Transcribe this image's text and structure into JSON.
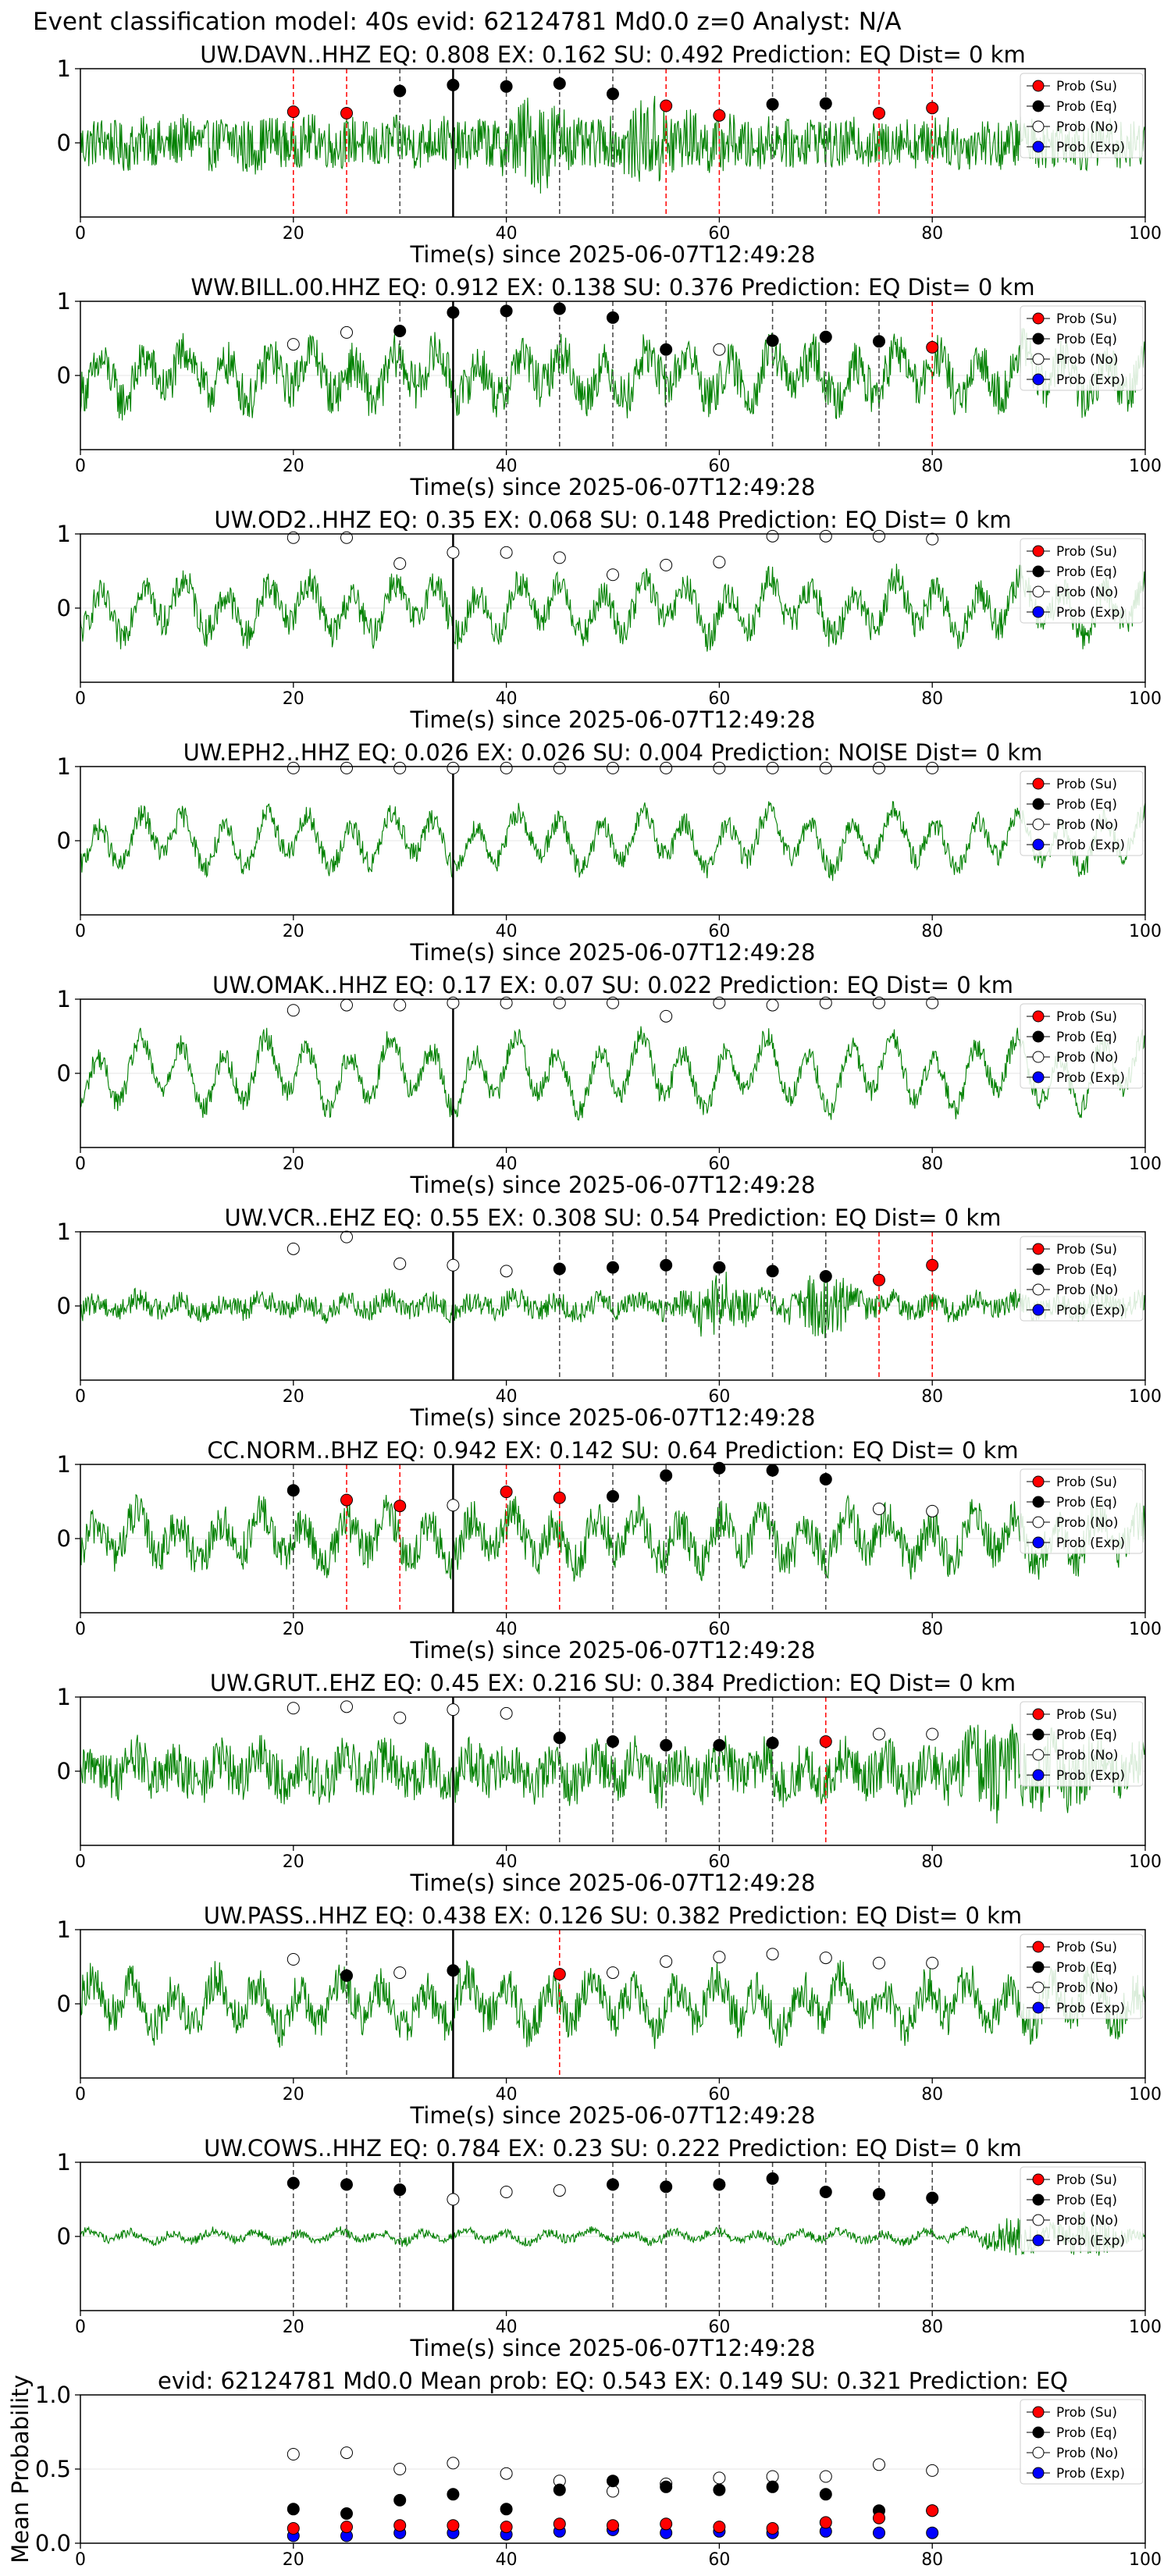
{
  "figure": {
    "suptitle": "Event classification model: 40s evid: 62124781 Md0.0 z=0 Analyst: N/A"
  },
  "legend_labels": [
    "Prob (Su)",
    "Prob (Eq)",
    "Prob (No)",
    "Prob (Exp)"
  ],
  "colors": {
    "waveform": "#008000",
    "su": "#ff0000",
    "eq": "#000000",
    "no": "#ffffff",
    "exp": "#0000ff",
    "su_line": "#ff0000",
    "eq_line": "#000000",
    "arrival_line": "#000000"
  },
  "chart_data": [
    {
      "type": "line",
      "station": "UW.DAVN..HHZ",
      "title": "UW.DAVN..HHZ   EQ: 0.808  EX: 0.162  SU: 0.492   Prediction: EQ    Dist= 0 km",
      "xlabel": "Time(s) since 2025-06-07T12:49:28",
      "ylabel": "",
      "xlim": [
        0,
        100
      ],
      "ylim": [
        -1,
        1
      ],
      "xticks": [
        0,
        20,
        40,
        60,
        80,
        100
      ],
      "yticks": [
        1,
        0
      ],
      "arrival_time": 35,
      "waveform": {
        "amp": 0.07,
        "noise": 0.55,
        "bursts": [
          [
            15,
            0.1
          ],
          [
            43,
            0.55
          ],
          [
            54,
            0.5
          ],
          [
            60,
            0.1
          ]
        ]
      },
      "prob_su": [
        [
          20,
          0.42
        ],
        [
          25,
          0.4
        ],
        [
          55,
          0.5
        ],
        [
          60,
          0.37
        ],
        [
          75,
          0.4
        ],
        [
          80,
          0.47
        ]
      ],
      "prob_eq": [
        [
          30,
          0.7
        ],
        [
          35,
          0.78
        ],
        [
          40,
          0.76
        ],
        [
          45,
          0.8
        ],
        [
          50,
          0.66
        ],
        [
          65,
          0.52
        ],
        [
          70,
          0.53
        ]
      ],
      "prob_no": [],
      "prob_exp": []
    },
    {
      "type": "line",
      "station": "WW.BILL.00.HHZ",
      "title": "WW.BILL.00.HHZ   EQ: 0.912  EX: 0.138  SU: 0.376   Prediction: EQ    Dist= 0 km",
      "xlabel": "Time(s) since 2025-06-07T12:49:28",
      "ylabel": "",
      "xlim": [
        0,
        100
      ],
      "ylim": [
        -1,
        1
      ],
      "xticks": [
        0,
        20,
        40,
        60,
        80,
        100
      ],
      "yticks": [
        1,
        0
      ],
      "arrival_time": 35,
      "waveform": {
        "amp": 0.35,
        "noise": 0.5,
        "bursts": []
      },
      "prob_su": [
        [
          80,
          0.38
        ]
      ],
      "prob_eq": [
        [
          30,
          0.6
        ],
        [
          35,
          0.85
        ],
        [
          40,
          0.87
        ],
        [
          45,
          0.9
        ],
        [
          50,
          0.78
        ],
        [
          55,
          0.35
        ],
        [
          65,
          0.47
        ],
        [
          70,
          0.52
        ],
        [
          75,
          0.46
        ]
      ],
      "prob_no": [
        [
          20,
          0.42
        ],
        [
          25,
          0.58
        ],
        [
          60,
          0.35
        ]
      ],
      "prob_exp": []
    },
    {
      "type": "line",
      "station": "UW.OD2..HHZ",
      "title": "UW.OD2..HHZ   EQ: 0.35  EX: 0.068  SU: 0.148   Prediction: EQ    Dist= 0 km",
      "xlabel": "Time(s) since 2025-06-07T12:49:28",
      "ylabel": "",
      "xlim": [
        0,
        100
      ],
      "ylim": [
        -1,
        1
      ],
      "xticks": [
        0,
        20,
        40,
        60,
        80,
        100
      ],
      "yticks": [
        1,
        0
      ],
      "arrival_time": 35,
      "waveform": {
        "amp": 0.4,
        "noise": 0.35,
        "bursts": []
      },
      "prob_su": [],
      "prob_eq": [],
      "prob_no": [
        [
          20,
          0.95
        ],
        [
          25,
          0.95
        ],
        [
          30,
          0.6
        ],
        [
          35,
          0.75
        ],
        [
          40,
          0.75
        ],
        [
          45,
          0.68
        ],
        [
          50,
          0.45
        ],
        [
          55,
          0.58
        ],
        [
          60,
          0.62
        ],
        [
          65,
          0.97
        ],
        [
          70,
          0.97
        ],
        [
          75,
          0.97
        ],
        [
          80,
          0.93
        ]
      ],
      "prob_exp": []
    },
    {
      "type": "line",
      "station": "UW.EPH2..HHZ",
      "title": "UW.EPH2..HHZ   EQ: 0.026  EX: 0.026  SU: 0.004   Prediction: NOISE    Dist= 0 km",
      "xlabel": "Time(s) since 2025-06-07T12:49:28",
      "ylabel": "",
      "xlim": [
        0,
        100
      ],
      "ylim": [
        -1,
        1
      ],
      "xticks": [
        0,
        20,
        40,
        60,
        80,
        100
      ],
      "yticks": [
        1,
        0
      ],
      "arrival_time": 35,
      "waveform": {
        "amp": 0.4,
        "noise": 0.25,
        "bursts": []
      },
      "prob_su": [],
      "prob_eq": [],
      "prob_no": [
        [
          20,
          0.98
        ],
        [
          25,
          0.98
        ],
        [
          30,
          0.98
        ],
        [
          35,
          0.98
        ],
        [
          40,
          0.98
        ],
        [
          45,
          0.98
        ],
        [
          50,
          0.98
        ],
        [
          55,
          0.98
        ],
        [
          60,
          0.98
        ],
        [
          65,
          0.98
        ],
        [
          70,
          0.98
        ],
        [
          75,
          0.98
        ],
        [
          80,
          0.98
        ]
      ],
      "prob_exp": []
    },
    {
      "type": "line",
      "station": "UW.OMAK..HHZ",
      "title": "UW.OMAK..HHZ   EQ: 0.17  EX: 0.07  SU: 0.022   Prediction: EQ    Dist= 0 km",
      "xlabel": "Time(s) since 2025-06-07T12:49:28",
      "ylabel": "",
      "xlim": [
        0,
        100
      ],
      "ylim": [
        -1,
        1
      ],
      "xticks": [
        0,
        20,
        40,
        60,
        80,
        100
      ],
      "yticks": [
        1,
        0
      ],
      "arrival_time": 35,
      "waveform": {
        "amp": 0.5,
        "noise": 0.25,
        "bursts": []
      },
      "prob_su": [],
      "prob_eq": [],
      "prob_no": [
        [
          20,
          0.85
        ],
        [
          25,
          0.92
        ],
        [
          30,
          0.92
        ],
        [
          35,
          0.95
        ],
        [
          40,
          0.95
        ],
        [
          45,
          0.95
        ],
        [
          50,
          0.95
        ],
        [
          55,
          0.77
        ],
        [
          60,
          0.95
        ],
        [
          65,
          0.92
        ],
        [
          70,
          0.95
        ],
        [
          75,
          0.95
        ],
        [
          80,
          0.95
        ]
      ],
      "prob_exp": []
    },
    {
      "type": "line",
      "station": "UW.VCR..EHZ",
      "title": "UW.VCR..EHZ   EQ: 0.55  EX: 0.308  SU: 0.54   Prediction: EQ    Dist= 0 km",
      "xlabel": "Time(s) since 2025-06-07T12:49:28",
      "ylabel": "",
      "xlim": [
        0,
        100
      ],
      "ylim": [
        -1,
        1
      ],
      "xticks": [
        0,
        20,
        40,
        60,
        80,
        100
      ],
      "yticks": [
        1,
        0
      ],
      "arrival_time": 35,
      "waveform": {
        "amp": 0.1,
        "noise": 0.25,
        "bursts": [
          [
            60,
            0.45
          ],
          [
            70,
            0.55
          ]
        ]
      },
      "prob_su": [
        [
          75,
          0.35
        ],
        [
          80,
          0.55
        ]
      ],
      "prob_eq": [
        [
          45,
          0.5
        ],
        [
          50,
          0.52
        ],
        [
          55,
          0.55
        ],
        [
          60,
          0.52
        ],
        [
          65,
          0.47
        ],
        [
          70,
          0.4
        ]
      ],
      "prob_no": [
        [
          20,
          0.77
        ],
        [
          25,
          0.93
        ],
        [
          30,
          0.57
        ],
        [
          35,
          0.55
        ],
        [
          40,
          0.47
        ]
      ],
      "prob_exp": []
    },
    {
      "type": "line",
      "station": "CC.NORM..BHZ",
      "title": "CC.NORM..BHZ   EQ: 0.942  EX: 0.142  SU: 0.64   Prediction: EQ    Dist= 0 km",
      "xlabel": "Time(s) since 2025-06-07T12:49:28",
      "ylabel": "",
      "xlim": [
        0,
        100
      ],
      "ylim": [
        -1,
        1
      ],
      "xticks": [
        0,
        20,
        40,
        60,
        80,
        100
      ],
      "yticks": [
        1,
        0
      ],
      "arrival_time": 35,
      "waveform": {
        "amp": 0.35,
        "noise": 0.45,
        "bursts": []
      },
      "prob_su": [
        [
          25,
          0.52
        ],
        [
          30,
          0.44
        ],
        [
          40,
          0.63
        ],
        [
          45,
          0.55
        ]
      ],
      "prob_eq": [
        [
          20,
          0.65
        ],
        [
          50,
          0.57
        ],
        [
          55,
          0.85
        ],
        [
          60,
          0.95
        ],
        [
          65,
          0.92
        ],
        [
          70,
          0.8
        ]
      ],
      "prob_no": [
        [
          35,
          0.45
        ],
        [
          75,
          0.4
        ],
        [
          80,
          0.37
        ]
      ],
      "prob_exp": []
    },
    {
      "type": "line",
      "station": "UW.GRUT..EHZ",
      "title": "UW.GRUT..EHZ   EQ: 0.45  EX: 0.216  SU: 0.384   Prediction: EQ    Dist= 0 km",
      "xlabel": "Time(s) since 2025-06-07T12:49:28",
      "ylabel": "",
      "xlim": [
        0,
        100
      ],
      "ylim": [
        -1,
        1
      ],
      "xticks": [
        0,
        20,
        40,
        60,
        80,
        100
      ],
      "yticks": [
        1,
        0
      ],
      "arrival_time": 35,
      "waveform": {
        "amp": 0.2,
        "noise": 0.55,
        "bursts": [
          [
            86,
            0.5
          ],
          [
            92,
            0.35
          ]
        ]
      },
      "prob_su": [
        [
          70,
          0.4
        ]
      ],
      "prob_eq": [
        [
          45,
          0.45
        ],
        [
          50,
          0.4
        ],
        [
          55,
          0.35
        ],
        [
          60,
          0.35
        ],
        [
          65,
          0.38
        ]
      ],
      "prob_no": [
        [
          20,
          0.85
        ],
        [
          25,
          0.87
        ],
        [
          30,
          0.72
        ],
        [
          35,
          0.83
        ],
        [
          40,
          0.78
        ],
        [
          75,
          0.5
        ],
        [
          80,
          0.5
        ]
      ],
      "prob_exp": []
    },
    {
      "type": "line",
      "station": "UW.PASS..HHZ",
      "title": "UW.PASS..HHZ   EQ: 0.438  EX: 0.126  SU: 0.382   Prediction: EQ    Dist= 0 km",
      "xlabel": "Time(s) since 2025-06-07T12:49:28",
      "ylabel": "",
      "xlim": [
        0,
        100
      ],
      "ylim": [
        -1,
        1
      ],
      "xticks": [
        0,
        20,
        40,
        60,
        80,
        100
      ],
      "yticks": [
        1,
        0
      ],
      "arrival_time": 35,
      "waveform": {
        "amp": 0.35,
        "noise": 0.45,
        "bursts": []
      },
      "prob_su": [
        [
          45,
          0.4
        ]
      ],
      "prob_eq": [
        [
          25,
          0.38
        ],
        [
          35,
          0.45
        ]
      ],
      "prob_no": [
        [
          20,
          0.6
        ],
        [
          30,
          0.42
        ],
        [
          50,
          0.42
        ],
        [
          55,
          0.57
        ],
        [
          60,
          0.63
        ],
        [
          65,
          0.67
        ],
        [
          70,
          0.62
        ],
        [
          75,
          0.55
        ],
        [
          80,
          0.55
        ]
      ],
      "prob_exp": []
    },
    {
      "type": "line",
      "station": "UW.COWS..HHZ",
      "title": "UW.COWS..HHZ   EQ: 0.784  EX: 0.23  SU: 0.222   Prediction: EQ    Dist= 0 km",
      "xlabel": "Time(s) since 2025-06-07T12:49:28",
      "ylabel": "",
      "xlim": [
        0,
        100
      ],
      "ylim": [
        -1,
        1
      ],
      "xticks": [
        0,
        20,
        40,
        60,
        80,
        100
      ],
      "yticks": [
        1,
        0
      ],
      "arrival_time": 35,
      "waveform": {
        "amp": 0.08,
        "noise": 0.1,
        "bursts": [
          [
            88,
            0.35
          ],
          [
            95,
            0.45
          ]
        ]
      },
      "prob_su": [],
      "prob_eq": [
        [
          20,
          0.72
        ],
        [
          25,
          0.7
        ],
        [
          30,
          0.63
        ],
        [
          50,
          0.7
        ],
        [
          55,
          0.67
        ],
        [
          60,
          0.7
        ],
        [
          65,
          0.78
        ],
        [
          70,
          0.6
        ],
        [
          75,
          0.57
        ],
        [
          80,
          0.52
        ]
      ],
      "prob_no": [
        [
          35,
          0.5
        ],
        [
          40,
          0.6
        ],
        [
          45,
          0.62
        ]
      ],
      "prob_exp": []
    },
    {
      "type": "scatter",
      "station": "mean",
      "title": "evid: 62124781  Md0.0   Mean prob:   EQ: 0.543  EX: 0.149  SU: 0.321   Prediction: EQ",
      "xlabel": "",
      "ylabel": "Mean Probability",
      "xlim": [
        0,
        100
      ],
      "ylim": [
        0,
        1
      ],
      "xticks": [
        0,
        20,
        40,
        60,
        80,
        100
      ],
      "yticks": [
        0,
        0.5,
        1
      ],
      "ytick_labels": [
        "0.0",
        "0.5",
        "1.0"
      ],
      "prob_su": [
        [
          20,
          0.1
        ],
        [
          25,
          0.11
        ],
        [
          30,
          0.12
        ],
        [
          35,
          0.12
        ],
        [
          40,
          0.11
        ],
        [
          45,
          0.13
        ],
        [
          50,
          0.12
        ],
        [
          55,
          0.13
        ],
        [
          60,
          0.11
        ],
        [
          65,
          0.1
        ],
        [
          70,
          0.14
        ],
        [
          75,
          0.17
        ],
        [
          80,
          0.22
        ]
      ],
      "prob_eq": [
        [
          20,
          0.23
        ],
        [
          25,
          0.2
        ],
        [
          30,
          0.29
        ],
        [
          35,
          0.33
        ],
        [
          40,
          0.23
        ],
        [
          45,
          0.36
        ],
        [
          50,
          0.42
        ],
        [
          55,
          0.38
        ],
        [
          60,
          0.36
        ],
        [
          65,
          0.38
        ],
        [
          70,
          0.33
        ],
        [
          75,
          0.22
        ],
        [
          80,
          0.22
        ]
      ],
      "prob_no": [
        [
          20,
          0.6
        ],
        [
          25,
          0.61
        ],
        [
          30,
          0.5
        ],
        [
          35,
          0.54
        ],
        [
          40,
          0.47
        ],
        [
          45,
          0.42
        ],
        [
          50,
          0.35
        ],
        [
          55,
          0.4
        ],
        [
          60,
          0.44
        ],
        [
          65,
          0.45
        ],
        [
          70,
          0.45
        ],
        [
          75,
          0.53
        ],
        [
          80,
          0.49
        ]
      ],
      "prob_exp": [
        [
          20,
          0.05
        ],
        [
          25,
          0.05
        ],
        [
          30,
          0.07
        ],
        [
          35,
          0.07
        ],
        [
          40,
          0.06
        ],
        [
          45,
          0.08
        ],
        [
          50,
          0.09
        ],
        [
          55,
          0.07
        ],
        [
          60,
          0.08
        ],
        [
          65,
          0.07
        ],
        [
          70,
          0.08
        ],
        [
          75,
          0.07
        ],
        [
          80,
          0.07
        ]
      ]
    }
  ]
}
